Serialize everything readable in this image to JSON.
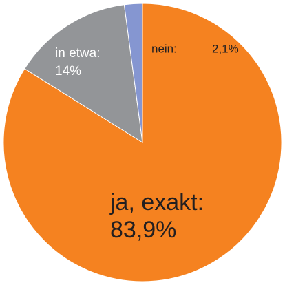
{
  "chart_data": {
    "type": "pie",
    "categories": [
      "ja, exakt:",
      "in etwa:",
      "nein:"
    ],
    "values": [
      83.9,
      14,
      2.1
    ],
    "value_labels": [
      "83,9%",
      "14%",
      "2,1%"
    ],
    "colors": [
      "#f58220",
      "#939598",
      "#8596d1"
    ]
  }
}
